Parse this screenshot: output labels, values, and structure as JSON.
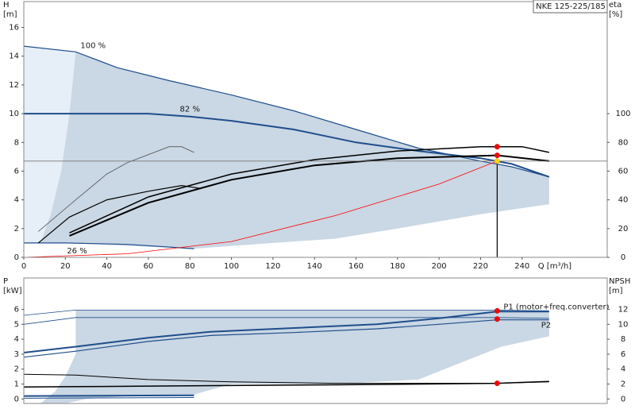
{
  "chart_data": [
    {
      "type": "line",
      "title": "NKE 125-225/185",
      "ylabel": "H",
      "yunit": "[m]",
      "y2label": "eta",
      "y2unit": "[%]",
      "xlabel": "Q [m³/h]",
      "xlim": [
        0,
        281
      ],
      "xticks": [
        0,
        20,
        40,
        60,
        80,
        100,
        120,
        140,
        160,
        180,
        200,
        220,
        240
      ],
      "ylim": [
        0,
        17.8
      ],
      "yticks": [
        0,
        2,
        4,
        6,
        8,
        10,
        12,
        14,
        16
      ],
      "y2lim": [
        0,
        178
      ],
      "y2ticks": [
        0,
        20,
        40,
        60,
        80,
        100
      ],
      "duty_point": {
        "x": 228,
        "y": 6.7
      },
      "series": [
        {
          "kind": "area",
          "color": "#e6eef7",
          "x": [
            0,
            25,
            22,
            18,
            13,
            8,
            0
          ],
          "values": [
            14.7,
            14.3,
            10,
            6,
            3,
            1,
            1
          ]
        },
        {
          "kind": "area",
          "color": "#cad7e4",
          "x": [
            25,
            45,
            70,
            100,
            130,
            160,
            190,
            220,
            235,
            253,
            253,
            220,
            180,
            150,
            120,
            82,
            50,
            20,
            8,
            13,
            18,
            22
          ],
          "values": [
            14.3,
            13.2,
            12.3,
            11.3,
            10.2,
            8.9,
            7.6,
            6.7,
            6.3,
            5.6,
            3.7,
            3.0,
            2.0,
            1.3,
            1.0,
            0.6,
            0.8,
            1.0,
            1,
            3,
            6,
            10
          ]
        },
        {
          "name": "100 %",
          "color": "#1f4e8c",
          "width": 1.2,
          "x": [
            0,
            25,
            45,
            70,
            100,
            130,
            160,
            190,
            220,
            235,
            253
          ],
          "values": [
            14.7,
            14.3,
            13.2,
            12.3,
            11.3,
            10.2,
            8.9,
            7.6,
            6.7,
            6.3,
            5.6
          ]
        },
        {
          "name": "82 %",
          "color": "#1f4e8c",
          "width": 2,
          "x": [
            0,
            60,
            80,
            100,
            130,
            160,
            190,
            220,
            235,
            253
          ],
          "values": [
            10,
            10,
            9.8,
            9.5,
            8.9,
            8.0,
            7.4,
            6.9,
            6.5,
            5.6
          ]
        },
        {
          "name": "26 %",
          "color": "#1f4e8c",
          "width": 1.2,
          "x": [
            0,
            20,
            50,
            82
          ],
          "values": [
            1,
            1,
            0.9,
            0.6
          ]
        },
        {
          "color": "#ff0000",
          "width": 0.8,
          "x": [
            0,
            50,
            100,
            150,
            200,
            228
          ],
          "values": [
            0,
            0.25,
            1.1,
            2.9,
            5.1,
            6.7
          ]
        },
        {
          "axis": "y2",
          "color": "#000000",
          "width": 1.5,
          "x": [
            22,
            60,
            100,
            140,
            180,
            220,
            240,
            253
          ],
          "values": [
            17,
            42,
            58,
            68,
            74,
            77,
            77,
            73
          ]
        },
        {
          "axis": "y2",
          "color": "#000000",
          "width": 2,
          "x": [
            22,
            60,
            100,
            140,
            180,
            228,
            253
          ],
          "values": [
            15,
            38,
            54,
            64,
            69,
            71,
            67
          ]
        },
        {
          "axis": "y2",
          "color": "#000000",
          "width": 1.2,
          "x": [
            7,
            22,
            40,
            60,
            76,
            85
          ],
          "values": [
            10,
            28,
            40,
            46,
            50,
            48
          ]
        },
        {
          "axis": "y2",
          "color": "#555555",
          "width": 0.8,
          "x": [
            7,
            25,
            40,
            50,
            70,
            76,
            82
          ],
          "values": [
            18,
            40,
            58,
            66,
            77,
            77,
            73
          ]
        },
        {
          "kind": "points",
          "axis": "y2",
          "color": "#ff0000",
          "x": [
            228,
            228
          ],
          "values": [
            77,
            71
          ]
        },
        {
          "kind": "points",
          "marker": "diamond",
          "color": "#ffd700",
          "x": [
            228
          ],
          "values": [
            6.7
          ]
        }
      ]
    },
    {
      "type": "line",
      "ylabel": "P",
      "yunit": "[kW]",
      "y2label": "NPSH",
      "y2unit": "[m]",
      "xlim": [
        0,
        281
      ],
      "ylim": [
        -0.3,
        8.1
      ],
      "yticks": [
        0,
        1,
        2,
        3,
        4,
        5,
        6
      ],
      "y2lim": [
        -0.6,
        16.2
      ],
      "y2ticks": [
        0,
        2,
        4,
        6,
        8,
        10,
        12
      ],
      "series": [
        {
          "kind": "area",
          "color": "#cad7e4",
          "x": [
            8,
            15,
            20,
            25,
            25,
            228,
            253,
            253,
            230,
            190,
            150,
            100,
            82,
            50,
            30,
            20
          ],
          "values": [
            -0.3,
            0.5,
            1.5,
            3.0,
            5.95,
            5.95,
            5.9,
            4.2,
            3.5,
            1.3,
            1.0,
            1.0,
            0.3,
            0.2,
            0.0,
            -0.3
          ]
        },
        {
          "color": "#1f4e8c",
          "width": 0.8,
          "x": [
            0,
            25,
            228,
            253
          ],
          "values": [
            5.6,
            5.95,
            5.95,
            5.9
          ]
        },
        {
          "color": "#1f4e8c",
          "width": 0.8,
          "x": [
            0,
            25,
            228,
            253
          ],
          "values": [
            5.0,
            5.45,
            5.45,
            5.4
          ]
        },
        {
          "name": "P1 (motor+freq.converter)",
          "color": "#1f4e8c",
          "width": 2,
          "x": [
            0,
            25,
            60,
            90,
            130,
            170,
            200,
            228,
            253
          ],
          "values": [
            3.1,
            3.5,
            4.1,
            4.5,
            4.75,
            5.0,
            5.4,
            5.85,
            5.85
          ]
        },
        {
          "name": "P2",
          "color": "#1f4e8c",
          "width": 1.2,
          "x": [
            0,
            25,
            60,
            90,
            130,
            170,
            200,
            228,
            253
          ],
          "values": [
            2.8,
            3.2,
            3.85,
            4.25,
            4.45,
            4.7,
            5.0,
            5.3,
            5.3
          ]
        },
        {
          "color": "#1f4e8c",
          "width": 2,
          "x": [
            0,
            82
          ],
          "values": [
            0.2,
            0.25
          ]
        },
        {
          "color": "#1f4e8c",
          "width": 1,
          "x": [
            0,
            82
          ],
          "values": [
            0.05,
            0.1
          ]
        },
        {
          "axis": "y2",
          "color": "#000000",
          "width": 1,
          "x": [
            0,
            25,
            60,
            100,
            150,
            228,
            253
          ],
          "values": [
            3.3,
            3.2,
            2.6,
            2.3,
            2.1,
            2.1,
            2.3
          ]
        },
        {
          "axis": "y2",
          "color": "#000000",
          "width": 1.5,
          "x": [
            0,
            25,
            100,
            150,
            228,
            253
          ],
          "values": [
            1.6,
            1.65,
            1.8,
            1.9,
            2.1,
            2.35
          ]
        },
        {
          "kind": "points",
          "color": "#ff0000",
          "x": [
            228,
            228
          ],
          "values": [
            5.9,
            5.35
          ]
        },
        {
          "kind": "points",
          "axis": "y2",
          "color": "#ff0000",
          "x": [
            228
          ],
          "values": [
            2.1
          ]
        }
      ]
    }
  ]
}
